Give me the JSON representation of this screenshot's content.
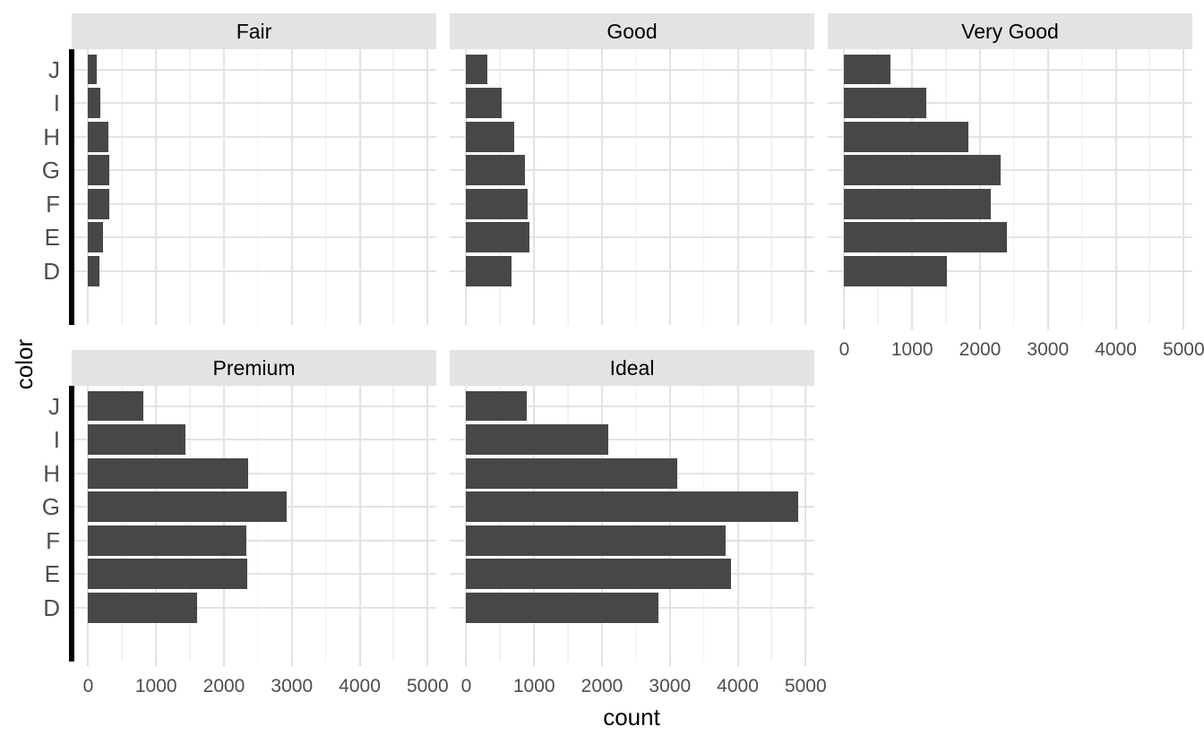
{
  "chart_data": {
    "type": "bar",
    "orientation": "horizontal",
    "title": "",
    "xlabel": "count",
    "ylabel": "color",
    "facet_variable": "cut",
    "categories_top_to_bottom": [
      "J",
      "I",
      "H",
      "G",
      "F",
      "E",
      "D"
    ],
    "x_tick_labels": [
      "0",
      "1000",
      "2000",
      "3000",
      "4000",
      "5000"
    ],
    "x_tick_values": [
      0,
      1000,
      2000,
      3000,
      4000,
      5000
    ],
    "x_minor_tick_step": 500,
    "xlim_data": [
      0,
      4884
    ],
    "grid": true,
    "legend": false,
    "facets": [
      {
        "label": "Fair",
        "row": 0,
        "col": 0,
        "y_axis": true,
        "x_axis": false,
        "values_top_to_bottom": [
          119,
          175,
          303,
          314,
          312,
          224,
          163
        ]
      },
      {
        "label": "Good",
        "row": 0,
        "col": 1,
        "y_axis": false,
        "x_axis": false,
        "values_top_to_bottom": [
          307,
          522,
          702,
          871,
          909,
          933,
          662
        ]
      },
      {
        "label": "Very Good",
        "row": 0,
        "col": 2,
        "y_axis": false,
        "x_axis": true,
        "values_top_to_bottom": [
          678,
          1204,
          1824,
          2299,
          2164,
          2400,
          1513
        ]
      },
      {
        "label": "Premium",
        "row": 1,
        "col": 0,
        "y_axis": true,
        "x_axis": true,
        "values_top_to_bottom": [
          808,
          1428,
          2360,
          2924,
          2331,
          2337,
          1603
        ]
      },
      {
        "label": "Ideal",
        "row": 1,
        "col": 1,
        "y_axis": false,
        "x_axis": true,
        "values_top_to_bottom": [
          896,
          2093,
          3115,
          4884,
          3826,
          3903,
          2834
        ]
      }
    ]
  },
  "style": {
    "bar_color": "#474747",
    "strip_background": "#E3E3E3",
    "panel_background": "#FFFFFF",
    "grid_major_color": "#E3E3E3",
    "grid_minor_color": "#F1F1F1",
    "axis_line_color": "#000000",
    "tick_label_color": "#4D4D4D",
    "title_color": "#000000"
  }
}
